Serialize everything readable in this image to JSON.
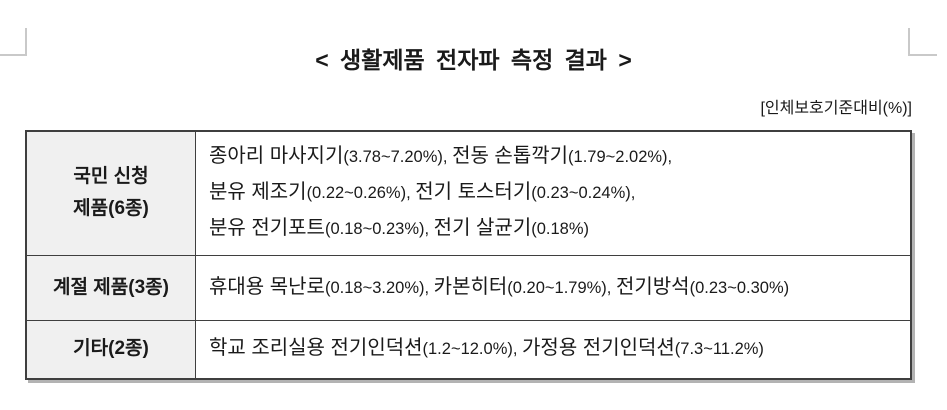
{
  "page": {
    "title": "< 생활제품 전자파 측정 결과 >",
    "unit_note": "[인체보호기준대비(%)]"
  },
  "colors": {
    "page_background": "#ffffff",
    "text": "#1a1a1a",
    "table_border": "#3f3f3f",
    "table_shadow": "#b3b3b3",
    "header_cell_background": "#f0f0f0",
    "corner_mark": "#c9c9c9"
  },
  "table": {
    "rows": [
      {
        "header_lines": [
          "국민 신청",
          "제품(6종)"
        ],
        "lines": [
          [
            {
              "name": "종아리 마사지기",
              "range": "(3.78~7.20%)",
              "sep": ", "
            },
            {
              "name": "전동 손톱깍기",
              "range": "(1.79~2.02%)",
              "sep": ","
            }
          ],
          [
            {
              "name": "분유 제조기",
              "range": "(0.22~0.26%)",
              "sep": ", "
            },
            {
              "name": "전기 토스터기",
              "range": "(0.23~0.24%)",
              "sep": ","
            }
          ],
          [
            {
              "name": "분유 전기포트",
              "range": "(0.18~0.23%)",
              "sep": ", "
            },
            {
              "name": "전기 살균기",
              "range": "(0.18%)",
              "sep": ""
            }
          ]
        ]
      },
      {
        "header_lines": [
          "계절 제품(3종)"
        ],
        "lines": [
          [
            {
              "name": "휴대용 목난로",
              "range": "(0.18~3.20%)",
              "sep": ", "
            },
            {
              "name": "카본히터",
              "range": "(0.20~1.79%)",
              "sep": ", "
            },
            {
              "name": "전기방석",
              "range": "(0.23~0.30%)",
              "sep": ""
            }
          ]
        ]
      },
      {
        "header_lines": [
          "기타(2종)"
        ],
        "lines": [
          [
            {
              "name": "학교 조리실용 전기인덕션",
              "range": "(1.2~12.0%)",
              "sep": ", "
            },
            {
              "name": "가정용 전기인덕션",
              "range": "(7.3~11.2%)",
              "sep": ""
            }
          ]
        ]
      }
    ]
  }
}
